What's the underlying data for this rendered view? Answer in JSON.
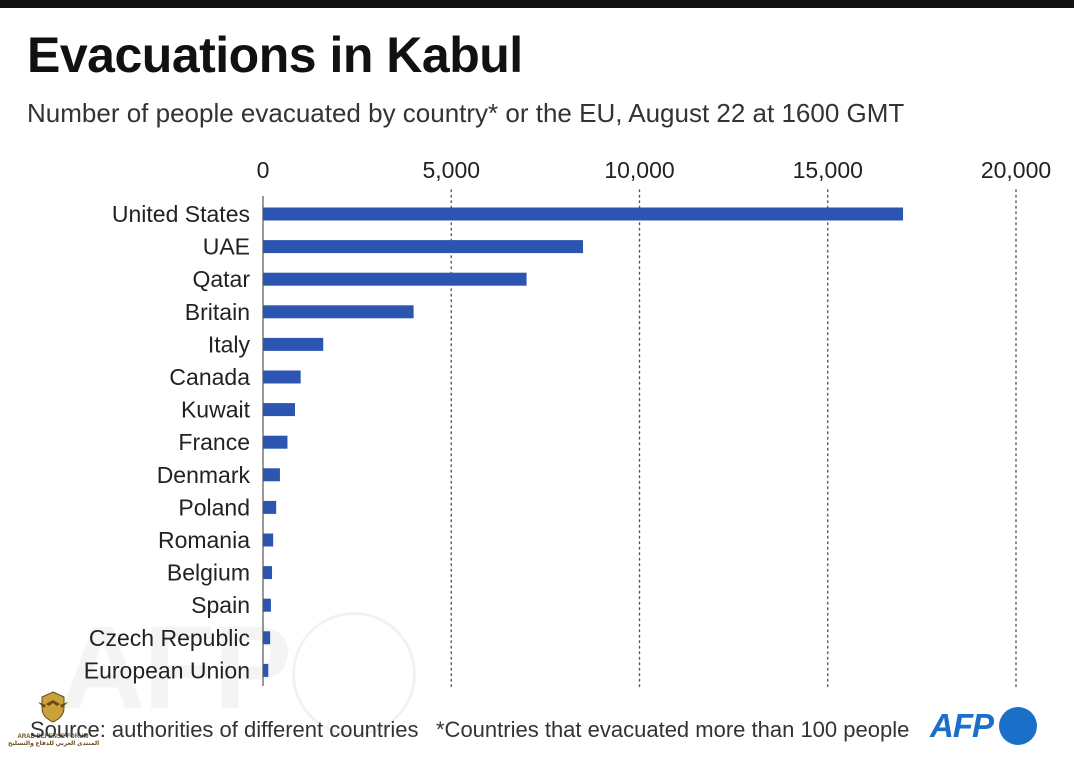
{
  "title": "Evacuations in Kabul",
  "subtitle": "Number of people evacuated by country* or the EU, August 22 at 1600 GMT",
  "footer": {
    "source": "Source: authorities of different countries",
    "note": "*Countries that evacuated more than 100 people",
    "logo": "AFP"
  },
  "watermark": "AFP",
  "forum_badge": {
    "line1": "ARAB DEFENSE FORUM",
    "line2": "المنتدى العربي للدفاع والتسليح"
  },
  "colors": {
    "bar": "#2b55b0",
    "grid": "#555555",
    "text": "#222222",
    "logo": "#1a6fc8"
  },
  "chart_data": {
    "type": "bar",
    "orientation": "horizontal",
    "title": "Evacuations in Kabul",
    "subtitle": "Number of people evacuated by country* or the EU, August 22 at 1600 GMT",
    "categories": [
      "United States",
      "UAE",
      "Qatar",
      "Britain",
      "Italy",
      "Canada",
      "Kuwait",
      "France",
      "Denmark",
      "Poland",
      "Romania",
      "Belgium",
      "Spain",
      "Czech Republic",
      "European Union"
    ],
    "values": [
      17000,
      8500,
      7000,
      4000,
      1600,
      1000,
      850,
      650,
      450,
      350,
      270,
      240,
      210,
      190,
      140
    ],
    "xlim": [
      0,
      20000
    ],
    "xticks": [
      0,
      5000,
      10000,
      15000,
      20000
    ],
    "xtick_labels": [
      "0",
      "5,000",
      "10,000",
      "15,000",
      "20,000"
    ],
    "axis_position": "top",
    "grid": "vertical dotted",
    "legend": "none"
  }
}
